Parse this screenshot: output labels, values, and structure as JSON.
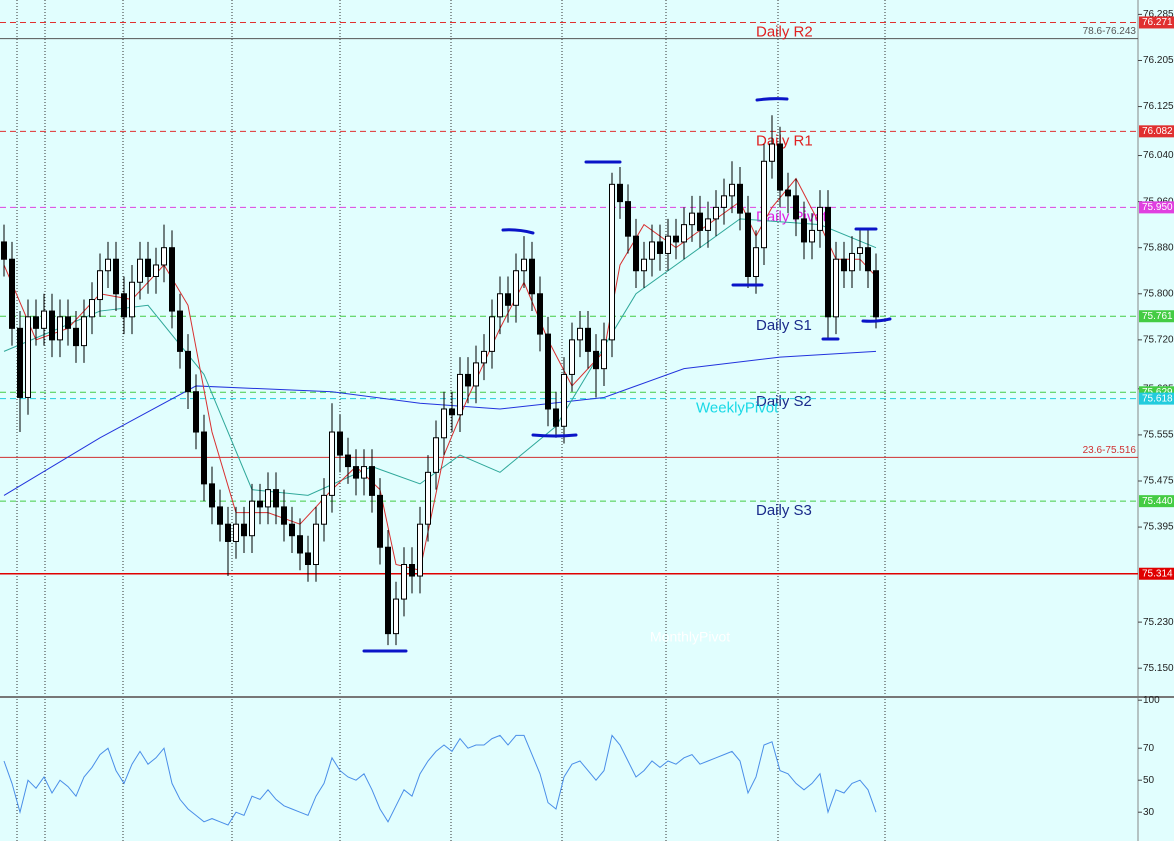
{
  "chart_data": [
    {
      "type": "candlestick",
      "ylim": [
        75.1,
        76.31
      ],
      "yticks": [
        76.285,
        76.205,
        76.125,
        {
          "value": 76.04,
          "label": "76.040"
        },
        {
          "value": 75.96,
          "label": "75.960"
        },
        {
          "value": 75.88,
          "label": "75.880"
        },
        {
          "value": 75.8,
          "label": "75.800"
        },
        {
          "value": 75.72,
          "label": "75.720"
        },
        75.635,
        75.555,
        75.475,
        75.395,
        {
          "value": 75.23,
          "label": "75.230"
        },
        {
          "value": 75.15,
          "label": "75.150"
        }
      ],
      "open": [
        75.89,
        75.86,
        75.74,
        75.62,
        75.76,
        75.74,
        75.77,
        75.72,
        75.76,
        75.74,
        75.71,
        75.76,
        75.79,
        75.84,
        75.86,
        75.8,
        75.76,
        75.82,
        75.86,
        75.83,
        75.85,
        75.88,
        75.77,
        75.7,
        75.63,
        75.56,
        75.47,
        75.43,
        75.4,
        75.37,
        75.4,
        75.38,
        75.44,
        75.43,
        75.46,
        75.43,
        75.4,
        75.38,
        75.35,
        75.33,
        75.4,
        75.45,
        75.56,
        75.52,
        75.5,
        75.48,
        75.5,
        75.45,
        75.36,
        75.21,
        75.27,
        75.33,
        75.31,
        75.4,
        75.49,
        75.55,
        75.6,
        75.59,
        75.66,
        75.64,
        75.68,
        75.7,
        75.76,
        75.8,
        75.78,
        75.84,
        75.86,
        75.8,
        75.73,
        75.6,
        75.57,
        75.66,
        75.72,
        75.74,
        75.7,
        75.67,
        75.72,
        75.99,
        75.96,
        75.9,
        75.84,
        75.86,
        75.89,
        75.87,
        75.9,
        75.89,
        75.92,
        75.94,
        75.91,
        75.93,
        75.95,
        75.97,
        75.99,
        75.94,
        75.83,
        75.88,
        76.03,
        76.06,
        75.98,
        75.97,
        75.93,
        75.89,
        75.91,
        75.95,
        75.76,
        75.86,
        75.84,
        75.87,
        75.88,
        75.84
      ],
      "high": [
        75.92,
        75.89,
        75.77,
        75.79,
        75.79,
        75.8,
        75.8,
        75.79,
        75.79,
        75.77,
        75.79,
        75.82,
        75.87,
        75.89,
        75.89,
        75.83,
        75.85,
        75.89,
        75.89,
        75.88,
        75.92,
        75.91,
        75.8,
        75.73,
        75.66,
        75.59,
        75.5,
        75.46,
        75.43,
        75.43,
        75.43,
        75.47,
        75.47,
        75.49,
        75.49,
        75.46,
        75.43,
        75.41,
        75.38,
        75.43,
        75.48,
        75.61,
        75.59,
        75.55,
        75.53,
        75.53,
        75.53,
        75.48,
        75.39,
        75.3,
        75.36,
        75.36,
        75.43,
        75.52,
        75.58,
        75.63,
        75.63,
        75.69,
        75.69,
        75.71,
        75.73,
        75.79,
        75.83,
        75.83,
        75.87,
        75.9,
        75.89,
        75.83,
        75.76,
        75.63,
        75.69,
        75.75,
        75.77,
        75.77,
        75.73,
        75.75,
        76.01,
        76.02,
        75.99,
        75.93,
        75.89,
        75.92,
        75.92,
        75.93,
        75.93,
        75.95,
        75.97,
        75.97,
        75.96,
        75.98,
        76.0,
        76.03,
        76.02,
        75.97,
        75.91,
        76.06,
        76.11,
        76.09,
        76.01,
        76.0,
        75.96,
        75.94,
        75.98,
        75.98,
        75.89,
        75.89,
        75.9,
        75.91,
        75.91,
        75.87
      ],
      "low": [
        75.83,
        75.71,
        75.56,
        75.59,
        75.71,
        75.71,
        75.69,
        75.69,
        75.71,
        75.68,
        75.68,
        75.73,
        75.76,
        75.81,
        75.77,
        75.73,
        75.73,
        75.79,
        75.8,
        75.8,
        75.82,
        75.74,
        75.67,
        75.6,
        75.53,
        75.44,
        75.4,
        75.37,
        75.31,
        75.34,
        75.35,
        75.35,
        75.4,
        75.4,
        75.4,
        75.37,
        75.35,
        75.32,
        75.3,
        75.3,
        75.37,
        75.42,
        75.49,
        75.47,
        75.45,
        75.45,
        75.42,
        75.33,
        75.19,
        75.19,
        75.24,
        75.28,
        75.28,
        75.37,
        75.46,
        75.52,
        75.56,
        75.56,
        75.61,
        75.61,
        75.65,
        75.67,
        75.73,
        75.75,
        75.75,
        75.81,
        75.77,
        75.7,
        75.57,
        75.55,
        75.54,
        75.63,
        75.69,
        75.67,
        75.62,
        75.64,
        75.69,
        75.93,
        75.87,
        75.81,
        75.81,
        75.83,
        75.84,
        75.84,
        75.86,
        75.86,
        75.89,
        75.88,
        75.88,
        75.9,
        75.92,
        75.94,
        75.91,
        75.81,
        75.8,
        75.85,
        76.0,
        75.95,
        75.94,
        75.9,
        75.86,
        75.86,
        75.88,
        75.72,
        75.73,
        75.81,
        75.81,
        75.84,
        75.81,
        75.74
      ],
      "close": [
        75.86,
        75.74,
        75.62,
        75.76,
        75.74,
        75.77,
        75.72,
        75.76,
        75.74,
        75.71,
        75.76,
        75.79,
        75.84,
        75.86,
        75.8,
        75.76,
        75.82,
        75.86,
        75.83,
        75.85,
        75.88,
        75.77,
        75.7,
        75.63,
        75.56,
        75.47,
        75.43,
        75.4,
        75.37,
        75.4,
        75.38,
        75.44,
        75.43,
        75.46,
        75.43,
        75.4,
        75.38,
        75.35,
        75.33,
        75.4,
        75.45,
        75.56,
        75.52,
        75.5,
        75.48,
        75.5,
        75.45,
        75.36,
        75.21,
        75.27,
        75.33,
        75.31,
        75.4,
        75.49,
        75.55,
        75.6,
        75.59,
        75.66,
        75.64,
        75.68,
        75.7,
        75.76,
        75.8,
        75.78,
        75.84,
        75.86,
        75.8,
        75.73,
        75.6,
        75.57,
        75.66,
        75.72,
        75.74,
        75.7,
        75.67,
        75.72,
        75.99,
        75.96,
        75.9,
        75.84,
        75.86,
        75.89,
        75.87,
        75.9,
        75.89,
        75.92,
        75.94,
        75.91,
        75.93,
        75.95,
        75.97,
        75.99,
        75.94,
        75.83,
        75.88,
        76.03,
        76.06,
        75.98,
        75.97,
        75.93,
        75.89,
        75.91,
        75.95,
        75.76,
        75.86,
        75.84,
        75.87,
        75.88,
        75.84,
        75.76
      ],
      "overlays": [
        {
          "color": "#2233dd",
          "x": [
            0,
            12,
            24,
            41,
            52,
            62,
            75,
            85,
            97,
            109
          ],
          "values": [
            75.45,
            75.55,
            75.64,
            75.63,
            75.61,
            75.6,
            75.62,
            75.67,
            75.69,
            75.7
          ]
        },
        {
          "color": "#2fa89a",
          "x": [
            0,
            12,
            18,
            25,
            31,
            38,
            46,
            52,
            57,
            62,
            69,
            79,
            92,
            102,
            109
          ],
          "values": [
            75.7,
            75.77,
            75.78,
            75.66,
            75.46,
            75.45,
            75.5,
            75.47,
            75.52,
            75.49,
            75.57,
            75.8,
            75.93,
            75.92,
            75.88
          ]
        },
        {
          "color": "#d83030",
          "x": [
            0,
            4,
            8,
            12,
            16,
            20,
            23,
            26,
            29,
            33,
            37,
            41,
            44,
            47,
            49,
            52,
            55,
            58,
            62,
            65,
            68,
            71,
            75,
            77,
            80,
            84,
            88,
            92,
            94,
            96,
            99,
            102,
            104,
            107,
            109
          ],
          "values": [
            75.85,
            75.72,
            75.74,
            75.8,
            75.79,
            75.85,
            75.78,
            75.56,
            75.42,
            75.42,
            75.4,
            75.46,
            75.5,
            75.46,
            75.33,
            75.32,
            75.52,
            75.62,
            75.74,
            75.82,
            75.72,
            75.64,
            75.7,
            75.85,
            75.92,
            75.88,
            75.92,
            75.96,
            75.9,
            75.95,
            76.0,
            75.92,
            75.86,
            75.86,
            75.83
          ]
        }
      ],
      "levels": {
        "names": [
          "Daily R2",
          "Daily R1",
          "Daily Pivot",
          "Daily S1",
          "Daily S2",
          "WeeklyPivot",
          "Daily S3",
          null
        ],
        "values": [
          76.271,
          76.082,
          75.95,
          75.761,
          75.629,
          75.618,
          75.44,
          75.314
        ],
        "value_labels": [
          "76.271",
          "76.082",
          "75.950",
          "75.761",
          "75.629",
          "75.618",
          "75.440",
          "75.314"
        ],
        "colors": [
          "#e03030",
          "#e03030",
          "#e040e0",
          "#44cc44",
          "#44cc44",
          "#22ccdd",
          "#44cc44",
          "#e00000"
        ],
        "name_colors": [
          "#e02020",
          "#e02020",
          "#e020e0",
          "#1a2a8a",
          "#1a2a8a",
          "#19d9e6",
          "#1a2a8a",
          null
        ],
        "line_styles": [
          "dashed",
          "dashed",
          "dashed",
          "dashed",
          "dashed",
          "dashed",
          "dashed",
          "solid"
        ]
      },
      "fib_lines": {
        "labels": [
          "78.6-76.243",
          "23.6-75.516"
        ],
        "values": [
          76.243,
          75.516
        ],
        "colors": [
          "#555555",
          "#d03030"
        ]
      },
      "annotations": [
        "MonthlyPivot"
      ]
    },
    {
      "type": "line",
      "color": "#4a8ee8",
      "ylim": [
        12,
        102
      ],
      "yticks": [
        100,
        70,
        50,
        30
      ],
      "values": [
        62,
        48,
        30,
        50,
        45,
        52,
        42,
        50,
        46,
        40,
        52,
        58,
        66,
        70,
        56,
        48,
        60,
        68,
        60,
        64,
        70,
        48,
        38,
        32,
        28,
        24,
        26,
        24,
        22,
        30,
        28,
        40,
        38,
        44,
        38,
        34,
        32,
        30,
        28,
        40,
        48,
        64,
        56,
        52,
        50,
        54,
        44,
        32,
        24,
        34,
        44,
        40,
        54,
        62,
        68,
        72,
        68,
        76,
        70,
        72,
        72,
        76,
        78,
        72,
        78,
        78,
        66,
        54,
        36,
        32,
        52,
        60,
        62,
        56,
        50,
        56,
        78,
        72,
        62,
        52,
        56,
        62,
        58,
        62,
        60,
        64,
        66,
        60,
        62,
        64,
        66,
        68,
        62,
        42,
        52,
        72,
        74,
        56,
        54,
        48,
        44,
        48,
        54,
        30,
        44,
        42,
        48,
        50,
        44,
        30
      ]
    }
  ]
}
